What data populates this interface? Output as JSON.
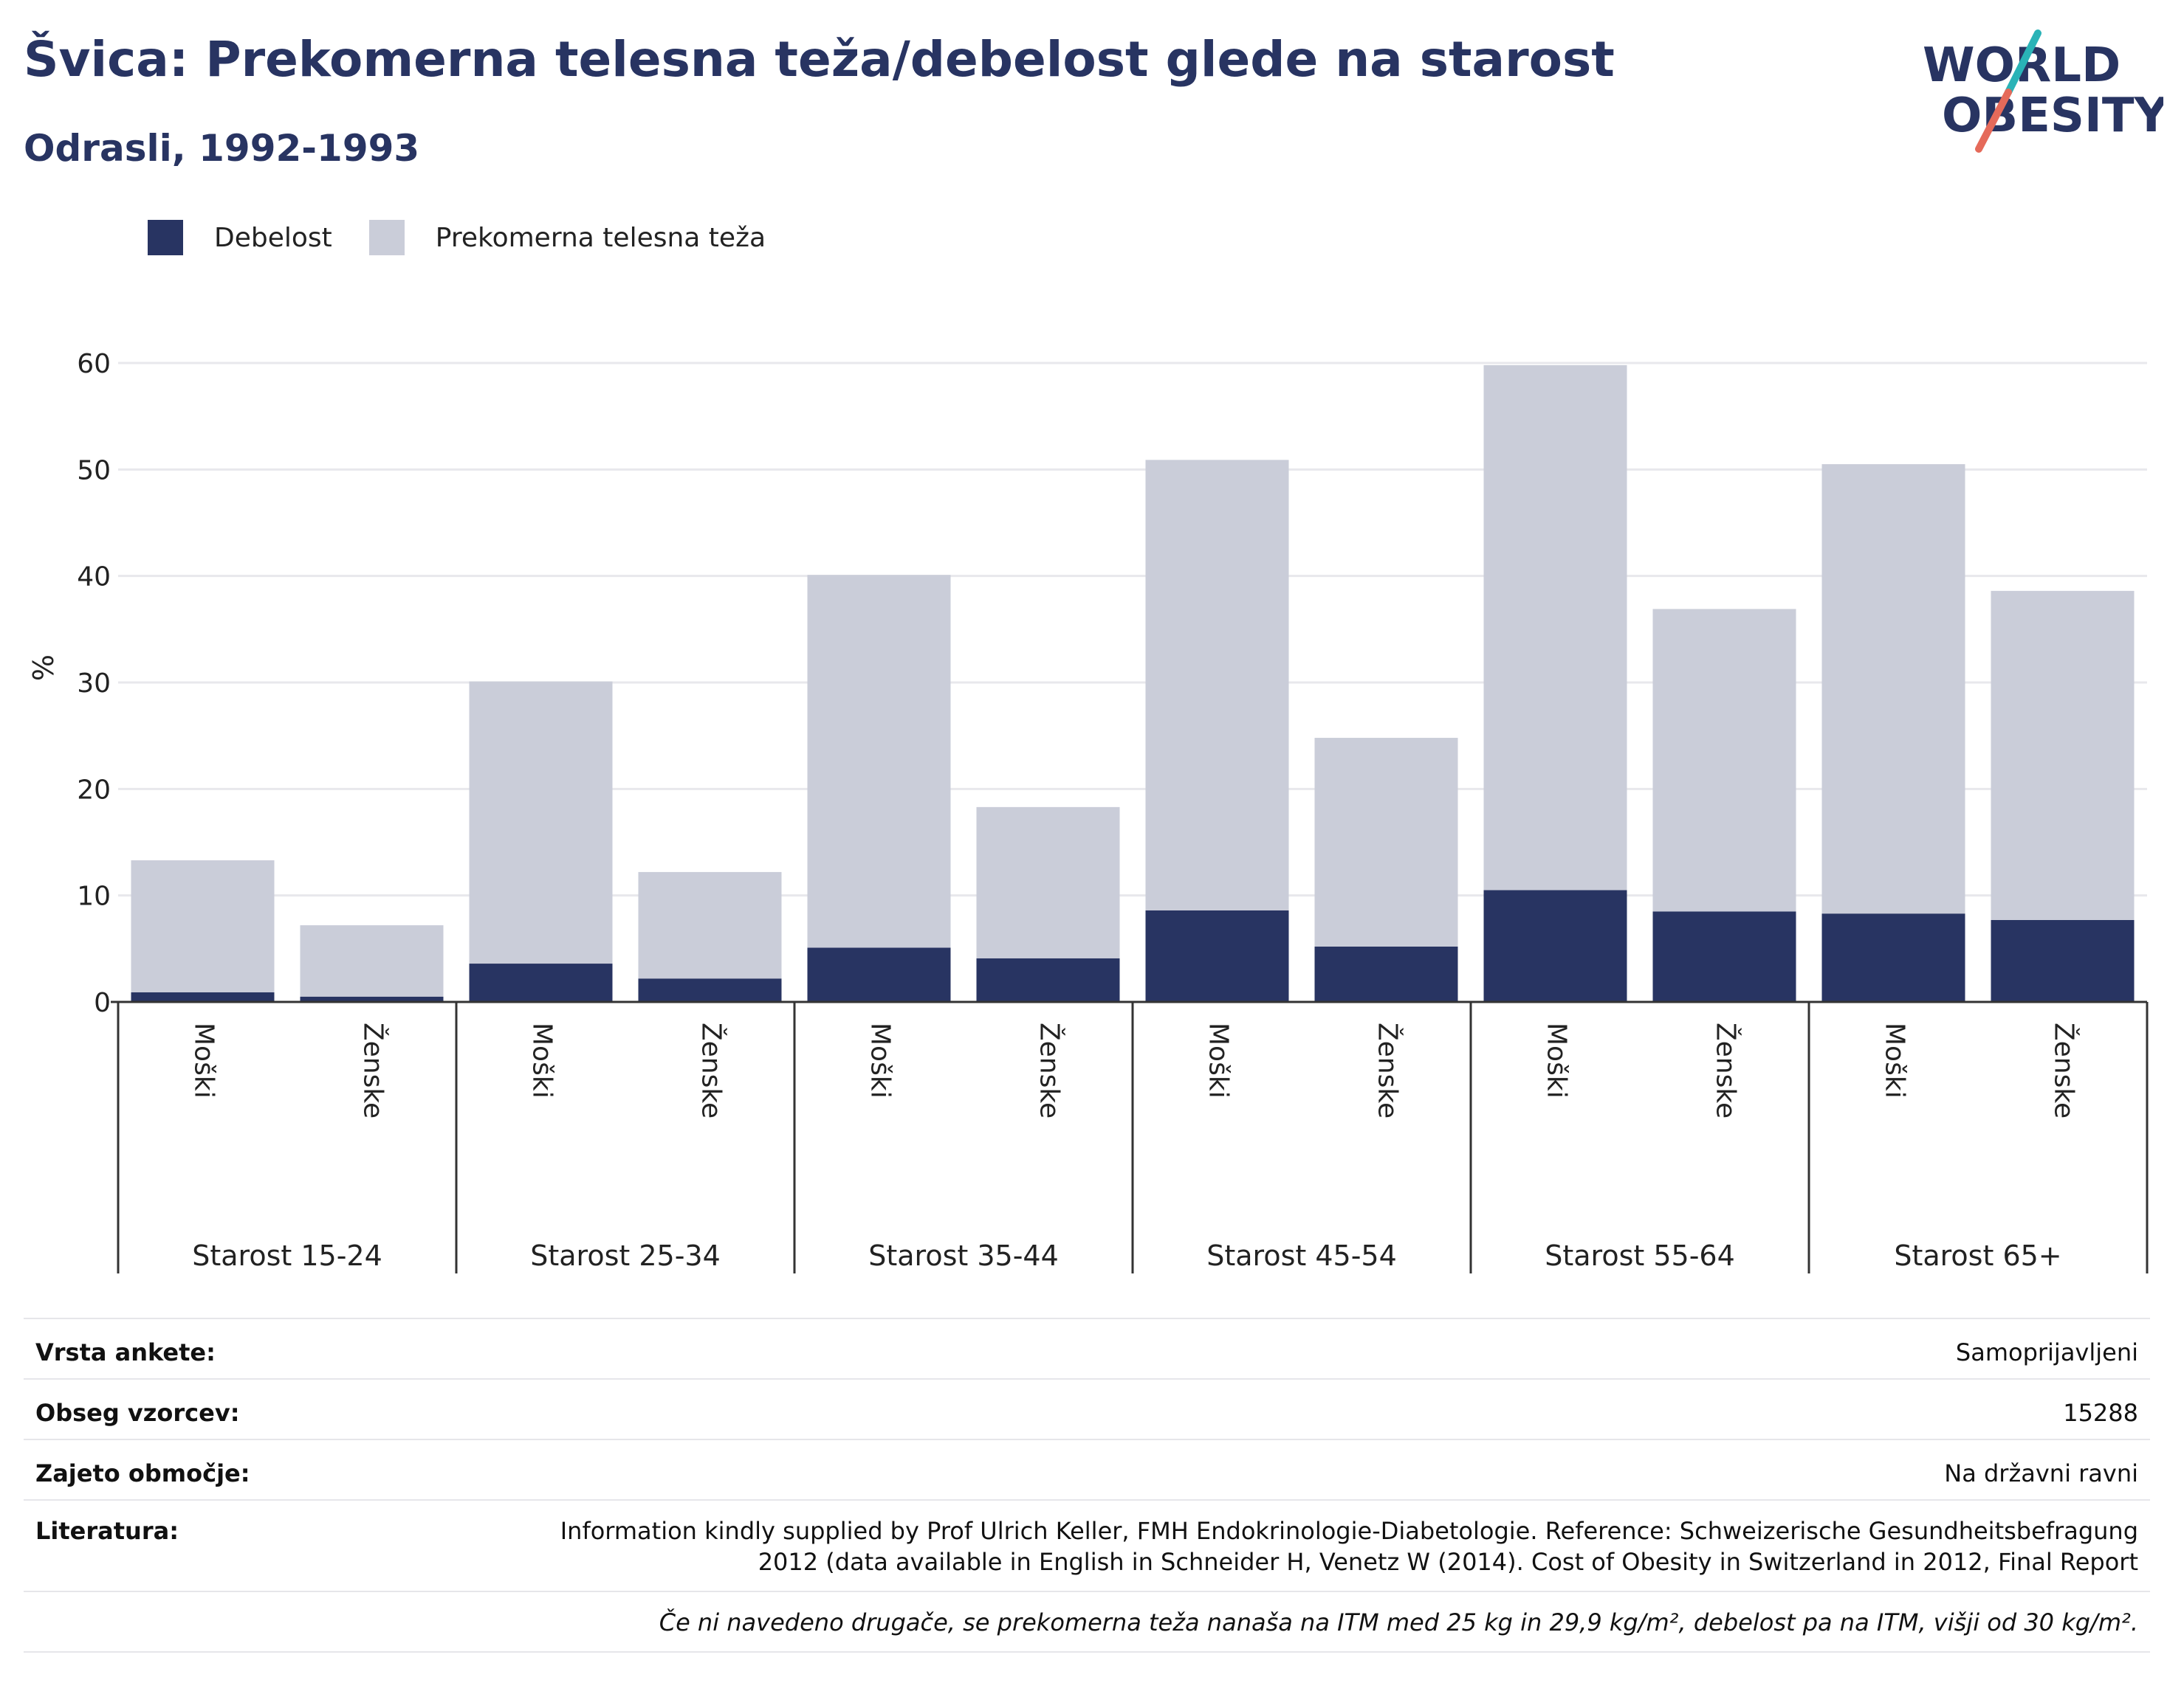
{
  "header": {
    "title": "Švica: Prekomerna telesna teža/debelost glede na starost",
    "subtitle": "Odrasli, 1992-1993"
  },
  "logo": {
    "line1": "WORLD",
    "line2": "OBESITY",
    "accent_teal": "#2ab3b7",
    "accent_coral": "#e56a5a",
    "text_color": "#283462"
  },
  "colors": {
    "obesity": "#283462",
    "overweight": "#cacdd9",
    "axis": "#333333",
    "grid": "#e8e8ec"
  },
  "legend": {
    "items": [
      {
        "label": "Debelost",
        "color": "#283462"
      },
      {
        "label": "Prekomerna telesna teža",
        "color": "#cacdd9"
      }
    ]
  },
  "chart_data": {
    "type": "bar",
    "stacked": true,
    "ylabel": "%",
    "ylim": [
      0,
      60
    ],
    "yticks": [
      0,
      10,
      20,
      30,
      40,
      50,
      60
    ],
    "grid": true,
    "legend_position": "top-left",
    "groups": [
      {
        "label": "Starost 15-24",
        "categories": [
          "Moški",
          "Ženske"
        ]
      },
      {
        "label": "Starost 25-34",
        "categories": [
          "Moški",
          "Ženske"
        ]
      },
      {
        "label": "Starost 35-44",
        "categories": [
          "Moški",
          "Ženske"
        ]
      },
      {
        "label": "Starost 45-54",
        "categories": [
          "Moški",
          "Ženske"
        ]
      },
      {
        "label": "Starost 55-64",
        "categories": [
          "Moški",
          "Ženske"
        ]
      },
      {
        "label": "Starost 65+",
        "categories": [
          "Moški",
          "Ženske"
        ]
      }
    ],
    "series": [
      {
        "name": "Debelost",
        "values": [
          0.9,
          0.5,
          3.6,
          2.2,
          5.1,
          4.1,
          8.6,
          5.2,
          10.5,
          8.5,
          8.3,
          7.7
        ]
      },
      {
        "name": "Prekomerna telesna teža",
        "values": [
          12.4,
          6.7,
          26.5,
          10.0,
          35.0,
          14.2,
          42.3,
          19.6,
          49.3,
          28.4,
          42.2,
          30.9
        ]
      }
    ]
  },
  "info": {
    "rows": [
      {
        "key": "Vrsta ankete:",
        "value": "Samoprijavljeni"
      },
      {
        "key": "Obseg vzorcev:",
        "value": "15288"
      },
      {
        "key": "Zajeto območje:",
        "value": "Na državni ravni"
      },
      {
        "key": "Literatura:",
        "value": "Information kindly supplied by Prof Ulrich Keller, FMH Endokrinologie-Diabetologie. Reference: Schweizerische Gesundheitsbefragung 2012 (data available in English in Schneider H, Venetz W (2014). Cost of Obesity in Switzerland in 2012, Final Report"
      }
    ],
    "note": "Če ni navedeno drugače, se prekomerna teža nanaša na ITM med 25 kg in 29,9 kg/m², debelost pa na ITM, višji od 30 kg/m²."
  }
}
